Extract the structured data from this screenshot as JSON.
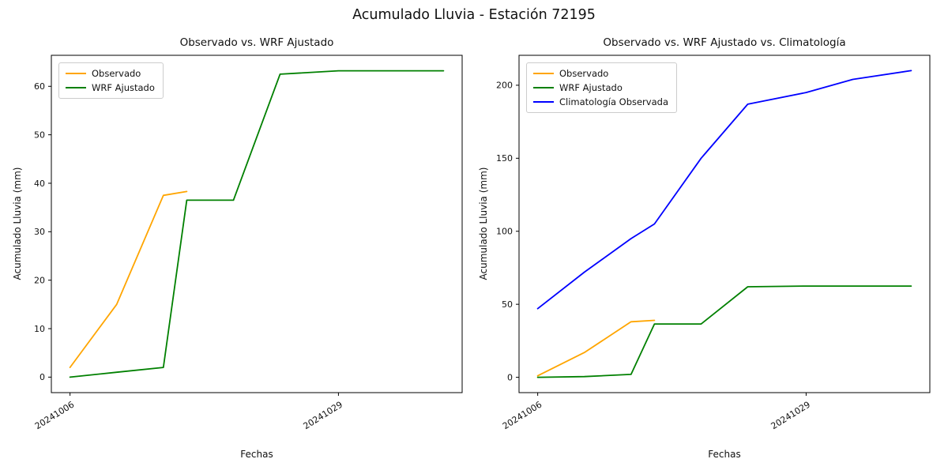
{
  "figure": {
    "title": "Acumulado Lluvia - Estación 72195",
    "background": "#ffffff"
  },
  "chart_data": [
    {
      "type": "line",
      "title": "Observado vs. WRF Ajustado",
      "xlabel": "Fechas",
      "ylabel": "Acumulado Lluvia (mm)",
      "grid": false,
      "legend_position": "upper-left",
      "xtick_labels": [
        "20241006",
        "20241029"
      ],
      "xtick_days": [
        0,
        23
      ],
      "yticks": [
        0,
        10,
        20,
        30,
        40,
        50,
        60
      ],
      "xlim_days": [
        -1.6,
        33.6
      ],
      "ylim": [
        -3.2,
        66.4
      ],
      "series": [
        {
          "name": "Observado",
          "color": "#FFA500",
          "dates": [
            "20241006",
            "20241010",
            "20241014",
            "20241016"
          ],
          "days": [
            0,
            4,
            8,
            10
          ],
          "values": [
            2,
            15,
            37.5,
            38.3
          ]
        },
        {
          "name": "WRF Ajustado",
          "color": "#008000",
          "dates": [
            "20241006",
            "20241010",
            "20241014",
            "20241016",
            "20241020",
            "20241024",
            "20241029",
            "20241102",
            "20241107"
          ],
          "days": [
            0,
            4,
            8,
            10,
            14,
            18,
            23,
            27,
            32
          ],
          "values": [
            0,
            1,
            2,
            36.5,
            36.5,
            62.5,
            63.2,
            63.2,
            63.2
          ]
        }
      ]
    },
    {
      "type": "line",
      "title": "Observado vs. WRF Ajustado vs. Climatología",
      "xlabel": "Fechas",
      "ylabel": "Acumulado Lluvia (mm)",
      "grid": false,
      "legend_position": "upper-left",
      "xtick_labels": [
        "20241006",
        "20241029"
      ],
      "xtick_days": [
        0,
        23
      ],
      "yticks": [
        0,
        50,
        100,
        150,
        200
      ],
      "xlim_days": [
        -1.6,
        33.6
      ],
      "ylim": [
        -10.5,
        220.5
      ],
      "series": [
        {
          "name": "Observado",
          "color": "#FFA500",
          "dates": [
            "20241006",
            "20241010",
            "20241014",
            "20241016"
          ],
          "days": [
            0,
            4,
            8,
            10
          ],
          "values": [
            1,
            17,
            38,
            39
          ]
        },
        {
          "name": "WRF Ajustado",
          "color": "#008000",
          "dates": [
            "20241006",
            "20241010",
            "20241014",
            "20241016",
            "20241020",
            "20241024",
            "20241029",
            "20241102",
            "20241107"
          ],
          "days": [
            0,
            4,
            8,
            10,
            14,
            18,
            23,
            27,
            32
          ],
          "values": [
            0,
            0.5,
            2,
            36.5,
            36.5,
            62,
            62.5,
            62.5,
            62.5
          ]
        },
        {
          "name": "Climatología Observada",
          "color": "#0000FF",
          "dates": [
            "20241006",
            "20241010",
            "20241014",
            "20241016",
            "20241020",
            "20241024",
            "20241029",
            "20241102",
            "20241107"
          ],
          "days": [
            0,
            4,
            8,
            10,
            14,
            18,
            23,
            27,
            32
          ],
          "values": [
            47,
            72,
            95,
            105,
            150,
            187,
            195,
            204,
            210
          ]
        }
      ]
    }
  ]
}
